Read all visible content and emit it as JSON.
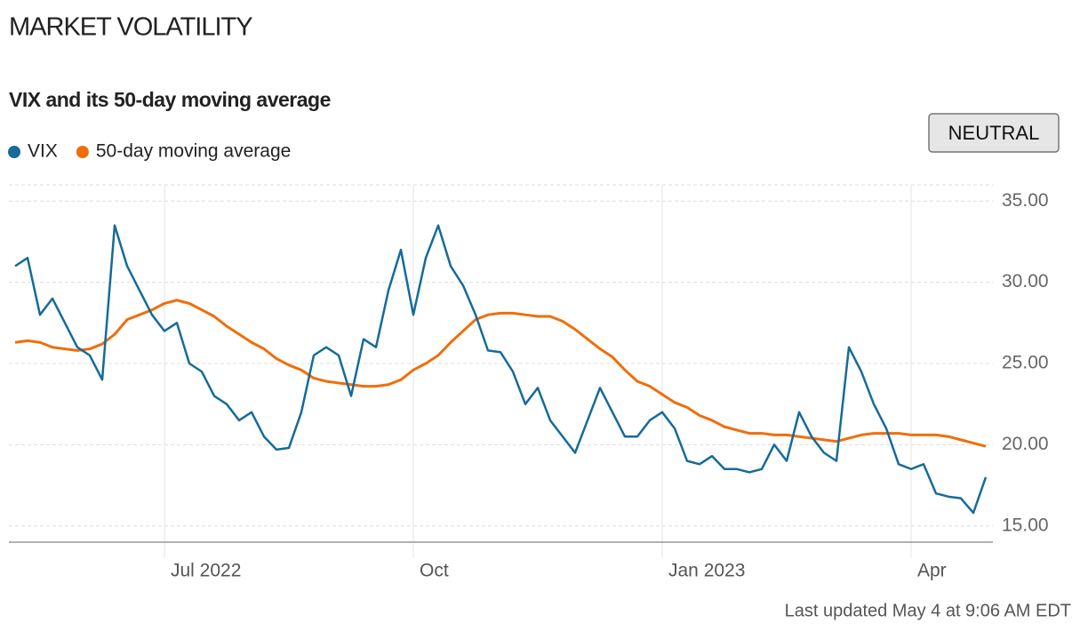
{
  "chart_data": {
    "type": "line",
    "title": "MARKET VOLATILITY",
    "subtitle": "VIX and its 50-day moving average",
    "status": "NEUTRAL",
    "footnote": "Last updated May 4 at 9:06 AM EDT",
    "categories": [
      null,
      null,
      null,
      null,
      null,
      null,
      null,
      null,
      null,
      null,
      null,
      null,
      "Jul 2022",
      null,
      null,
      null,
      null,
      null,
      null,
      null,
      null,
      null,
      null,
      null,
      null,
      null,
      null,
      null,
      null,
      null,
      null,
      null,
      "Oct",
      null,
      null,
      null,
      null,
      null,
      null,
      null,
      null,
      null,
      null,
      null,
      null,
      null,
      null,
      null,
      null,
      null,
      null,
      null,
      "Jan 2023",
      null,
      null,
      null,
      null,
      null,
      null,
      null,
      null,
      null,
      null,
      null,
      null,
      null,
      null,
      null,
      null,
      null,
      null,
      null,
      "Apr",
      null,
      null,
      null,
      null,
      null,
      null
    ],
    "series": [
      {
        "name": "VIX",
        "color": "#156b99",
        "values": [
          31,
          31.5,
          28,
          29,
          27.5,
          26,
          25.5,
          24,
          33.5,
          31,
          29.5,
          28,
          27,
          27.5,
          25,
          24.5,
          23,
          22.5,
          21.5,
          22,
          20.5,
          19.7,
          19.8,
          22,
          25.5,
          26,
          25.5,
          23,
          26.5,
          26,
          29.5,
          32,
          28,
          31.5,
          33.5,
          31,
          29.8,
          28,
          25.8,
          25.7,
          24.5,
          22.5,
          23.5,
          21.5,
          20.5,
          19.5,
          21.5,
          23.5,
          22,
          20.5,
          20.5,
          21.5,
          22,
          21,
          19,
          18.8,
          19.3,
          18.5,
          18.5,
          18.3,
          18.5,
          20,
          19,
          22,
          20.5,
          19.5,
          19,
          26,
          24.5,
          22.5,
          21,
          18.8,
          18.5,
          18.8,
          17,
          16.8,
          16.7,
          15.8,
          18
        ]
      },
      {
        "name": "50-day moving average",
        "color": "#f06e0a",
        "values": [
          26.3,
          26.4,
          26.3,
          26,
          25.9,
          25.8,
          25.9,
          26.2,
          26.8,
          27.7,
          28,
          28.3,
          28.7,
          28.9,
          28.7,
          28.3,
          27.9,
          27.3,
          26.8,
          26.3,
          25.9,
          25.3,
          24.9,
          24.6,
          24.1,
          23.9,
          23.8,
          23.7,
          23.6,
          23.6,
          23.7,
          24,
          24.6,
          25,
          25.5,
          26.3,
          27,
          27.7,
          28,
          28.1,
          28.1,
          28,
          27.9,
          27.9,
          27.6,
          27.1,
          26.5,
          25.9,
          25.4,
          24.6,
          23.9,
          23.6,
          23.1,
          22.6,
          22.3,
          21.8,
          21.5,
          21.1,
          20.9,
          20.7,
          20.7,
          20.6,
          20.6,
          20.5,
          20.4,
          20.3,
          20.2,
          20.4,
          20.6,
          20.7,
          20.7,
          20.7,
          20.6,
          20.6,
          20.6,
          20.5,
          20.3,
          20.1,
          19.9
        ]
      }
    ],
    "ylim": [
      14,
      36
    ],
    "yticks": [
      {
        "value": 15,
        "label": "15.00"
      },
      {
        "value": 20,
        "label": "20.00"
      },
      {
        "value": 25,
        "label": "25.00"
      },
      {
        "value": 30,
        "label": "30.00"
      },
      {
        "value": 35,
        "label": "35.00"
      }
    ],
    "grid": true
  }
}
